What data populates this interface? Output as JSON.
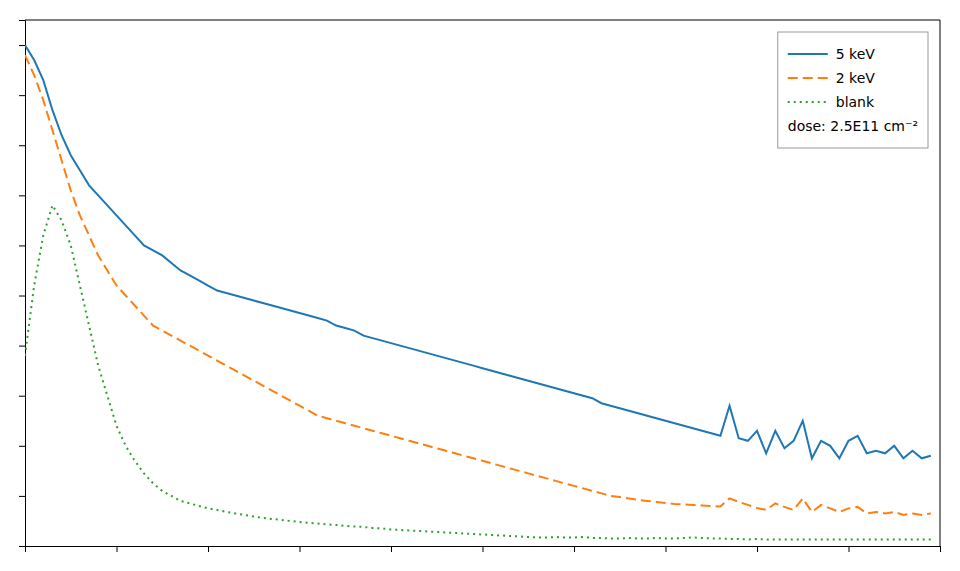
{
  "chart_data": {
    "type": "line",
    "x": [
      0,
      1,
      2,
      3,
      4,
      5,
      6,
      7,
      8,
      9,
      10,
      11,
      12,
      13,
      14,
      15,
      16,
      17,
      18,
      19,
      20,
      21,
      22,
      23,
      24,
      25,
      26,
      27,
      28,
      29,
      30,
      31,
      32,
      33,
      34,
      35,
      36,
      37,
      38,
      39,
      40,
      41,
      42,
      43,
      44,
      45,
      46,
      47,
      48,
      49,
      50,
      51,
      52,
      53,
      54,
      55,
      56,
      57,
      58,
      59,
      60,
      61,
      62,
      63,
      64,
      65,
      66,
      67,
      68,
      69,
      70,
      71,
      72,
      73,
      74,
      75,
      76,
      77,
      78,
      79,
      80,
      81,
      82,
      83,
      84,
      85,
      86,
      87,
      88,
      89,
      90,
      91,
      92,
      93,
      94,
      95,
      96,
      97,
      98,
      99
    ],
    "series": [
      {
        "name": "5 keV",
        "line_style": "solid",
        "values": [
          1.0,
          0.97,
          0.93,
          0.87,
          0.82,
          0.78,
          0.75,
          0.72,
          0.7,
          0.68,
          0.66,
          0.64,
          0.62,
          0.6,
          0.59,
          0.58,
          0.565,
          0.55,
          0.54,
          0.53,
          0.52,
          0.51,
          0.505,
          0.5,
          0.495,
          0.49,
          0.485,
          0.48,
          0.475,
          0.47,
          0.465,
          0.46,
          0.455,
          0.45,
          0.44,
          0.435,
          0.43,
          0.42,
          0.415,
          0.41,
          0.405,
          0.4,
          0.395,
          0.39,
          0.385,
          0.38,
          0.375,
          0.37,
          0.365,
          0.36,
          0.355,
          0.35,
          0.345,
          0.34,
          0.335,
          0.33,
          0.325,
          0.32,
          0.315,
          0.31,
          0.305,
          0.3,
          0.295,
          0.285,
          0.28,
          0.275,
          0.27,
          0.265,
          0.26,
          0.255,
          0.25,
          0.245,
          0.24,
          0.235,
          0.23,
          0.225,
          0.22,
          0.28,
          0.215,
          0.21,
          0.23,
          0.185,
          0.23,
          0.195,
          0.21,
          0.25,
          0.175,
          0.21,
          0.2,
          0.175,
          0.21,
          0.22,
          0.185,
          0.19,
          0.185,
          0.2,
          0.175,
          0.19,
          0.175,
          0.18
        ]
      },
      {
        "name": "2 keV",
        "line_style": "dashed",
        "values": [
          0.98,
          0.94,
          0.89,
          0.83,
          0.77,
          0.71,
          0.66,
          0.62,
          0.58,
          0.55,
          0.52,
          0.5,
          0.48,
          0.46,
          0.44,
          0.43,
          0.42,
          0.41,
          0.4,
          0.39,
          0.38,
          0.37,
          0.36,
          0.35,
          0.34,
          0.33,
          0.32,
          0.31,
          0.3,
          0.29,
          0.28,
          0.27,
          0.26,
          0.255,
          0.25,
          0.245,
          0.24,
          0.235,
          0.23,
          0.225,
          0.22,
          0.215,
          0.21,
          0.205,
          0.2,
          0.195,
          0.19,
          0.185,
          0.18,
          0.175,
          0.17,
          0.165,
          0.16,
          0.155,
          0.15,
          0.145,
          0.14,
          0.135,
          0.13,
          0.125,
          0.12,
          0.115,
          0.11,
          0.105,
          0.1,
          0.098,
          0.095,
          0.092,
          0.09,
          0.088,
          0.086,
          0.084,
          0.083,
          0.082,
          0.081,
          0.08,
          0.079,
          0.095,
          0.088,
          0.082,
          0.076,
          0.072,
          0.085,
          0.078,
          0.072,
          0.095,
          0.068,
          0.082,
          0.075,
          0.068,
          0.075,
          0.078,
          0.065,
          0.068,
          0.065,
          0.068,
          0.062,
          0.065,
          0.062,
          0.065
        ]
      },
      {
        "name": "blank",
        "line_style": "dotted",
        "values": [
          0.38,
          0.52,
          0.62,
          0.68,
          0.65,
          0.6,
          0.52,
          0.44,
          0.36,
          0.3,
          0.24,
          0.2,
          0.17,
          0.145,
          0.125,
          0.11,
          0.1,
          0.09,
          0.085,
          0.08,
          0.075,
          0.072,
          0.068,
          0.065,
          0.062,
          0.059,
          0.056,
          0.054,
          0.052,
          0.05,
          0.048,
          0.046,
          0.045,
          0.043,
          0.042,
          0.04,
          0.039,
          0.038,
          0.036,
          0.035,
          0.033,
          0.032,
          0.031,
          0.03,
          0.029,
          0.028,
          0.027,
          0.026,
          0.025,
          0.024,
          0.023,
          0.022,
          0.021,
          0.02,
          0.019,
          0.018,
          0.017,
          0.017,
          0.018,
          0.017,
          0.017,
          0.018,
          0.016,
          0.016,
          0.015,
          0.015,
          0.016,
          0.015,
          0.015,
          0.016,
          0.015,
          0.015,
          0.016,
          0.017,
          0.016,
          0.015,
          0.015,
          0.014,
          0.014,
          0.013,
          0.014,
          0.013,
          0.013,
          0.013,
          0.013,
          0.013,
          0.013,
          0.013,
          0.013,
          0.013,
          0.013,
          0.013,
          0.013,
          0.013,
          0.013,
          0.013,
          0.013,
          0.013,
          0.013,
          0.013
        ]
      }
    ],
    "annotations": [
      "dose: 2.5E11 cm⁻²"
    ],
    "xlim": [
      0,
      100
    ],
    "ylim": [
      0,
      1.05
    ],
    "xticks": [
      0,
      10,
      20,
      30,
      40,
      50,
      60,
      70,
      80,
      90,
      100
    ],
    "yticks": [
      0,
      0.1,
      0.2,
      0.3,
      0.4,
      0.5,
      0.6,
      0.7,
      0.8,
      0.9,
      1.0
    ],
    "tick_labels": false,
    "grid": false,
    "legend": "upper-right"
  }
}
